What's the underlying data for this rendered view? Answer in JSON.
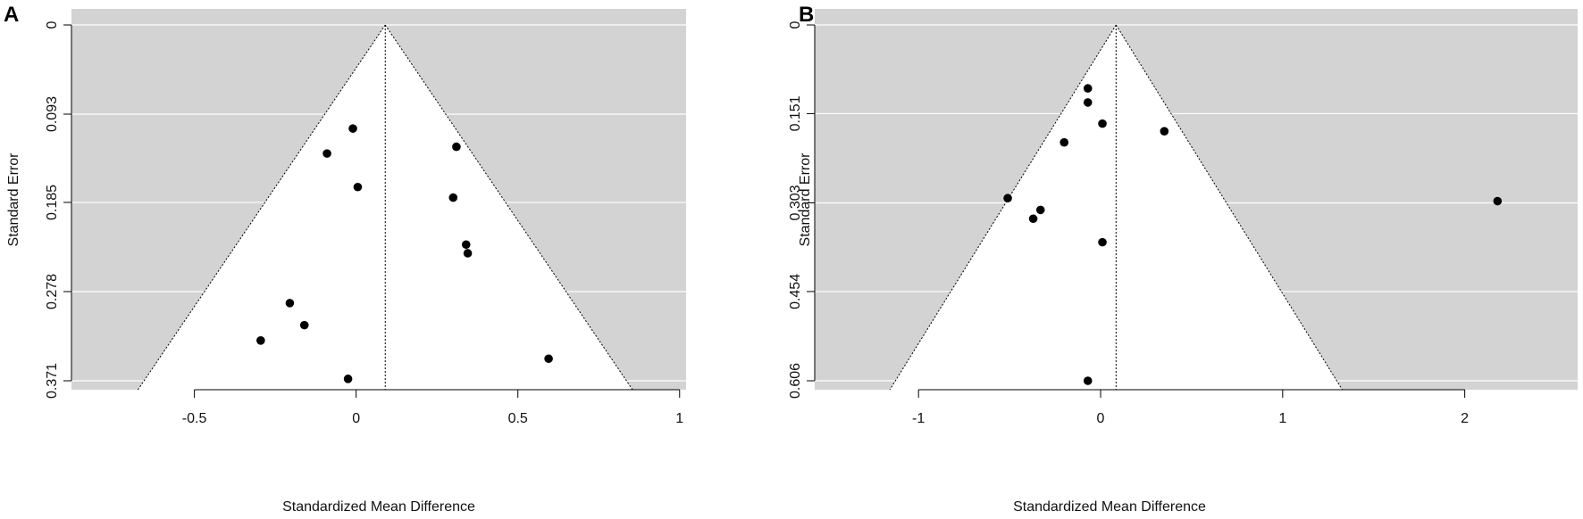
{
  "chart_data": [
    {
      "panel_label": "A",
      "type": "scatter",
      "subtype": "funnel-plot",
      "xlabel": "Standardized Mean Difference",
      "ylabel": "Standard Error",
      "xlim": [
        -0.88,
        1.02
      ],
      "ylim": [
        0.371,
        0
      ],
      "y_reversed": true,
      "xticks": [
        -0.5,
        0,
        0.5,
        1
      ],
      "xtick_labels": [
        "-0.5",
        "0",
        "0.5",
        "1"
      ],
      "yticks": [
        0,
        0.093,
        0.185,
        0.278,
        0.371
      ],
      "ytick_labels": [
        "0",
        "0.093",
        "0.185",
        "0.278",
        "0.371"
      ],
      "summary_estimate": 0.09,
      "funnel_z": 2.01,
      "background_color": "#d3d3d3",
      "funnel_color": "#ffffff",
      "gridlines": "horizontal",
      "points": [
        {
          "x": -0.01,
          "y": 0.108
        },
        {
          "x": -0.09,
          "y": 0.134
        },
        {
          "x": 0.31,
          "y": 0.127
        },
        {
          "x": 0.005,
          "y": 0.169
        },
        {
          "x": 0.3,
          "y": 0.18
        },
        {
          "x": 0.34,
          "y": 0.229
        },
        {
          "x": 0.345,
          "y": 0.238
        },
        {
          "x": -0.205,
          "y": 0.29
        },
        {
          "x": -0.16,
          "y": 0.313
        },
        {
          "x": -0.295,
          "y": 0.329
        },
        {
          "x": 0.595,
          "y": 0.348
        },
        {
          "x": -0.025,
          "y": 0.369
        }
      ]
    },
    {
      "panel_label": "B",
      "type": "scatter",
      "subtype": "funnel-plot",
      "xlabel": "Standardized Mean Difference",
      "ylabel": "Standard Error",
      "xlim": [
        -1.57,
        2.62
      ],
      "ylim": [
        0.606,
        0
      ],
      "y_reversed": true,
      "xticks": [
        -1,
        0,
        1,
        2
      ],
      "xtick_labels": [
        "-1",
        "0",
        "1",
        "2"
      ],
      "yticks": [
        0,
        0.151,
        0.303,
        0.454,
        0.606
      ],
      "ytick_labels": [
        "0",
        "0.151",
        "0.303",
        "0.454",
        "0.606"
      ],
      "summary_estimate": 0.085,
      "funnel_z": 2.0,
      "background_color": "#d3d3d3",
      "funnel_color": "#ffffff",
      "gridlines": "horizontal",
      "points": [
        {
          "x": -0.07,
          "y": 0.108
        },
        {
          "x": -0.07,
          "y": 0.132
        },
        {
          "x": 0.01,
          "y": 0.168
        },
        {
          "x": 0.35,
          "y": 0.181
        },
        {
          "x": -0.2,
          "y": 0.2
        },
        {
          "x": -0.51,
          "y": 0.295
        },
        {
          "x": -0.33,
          "y": 0.315
        },
        {
          "x": -0.37,
          "y": 0.33
        },
        {
          "x": 0.01,
          "y": 0.37
        },
        {
          "x": 2.18,
          "y": 0.3
        },
        {
          "x": -0.07,
          "y": 0.606
        }
      ]
    }
  ]
}
